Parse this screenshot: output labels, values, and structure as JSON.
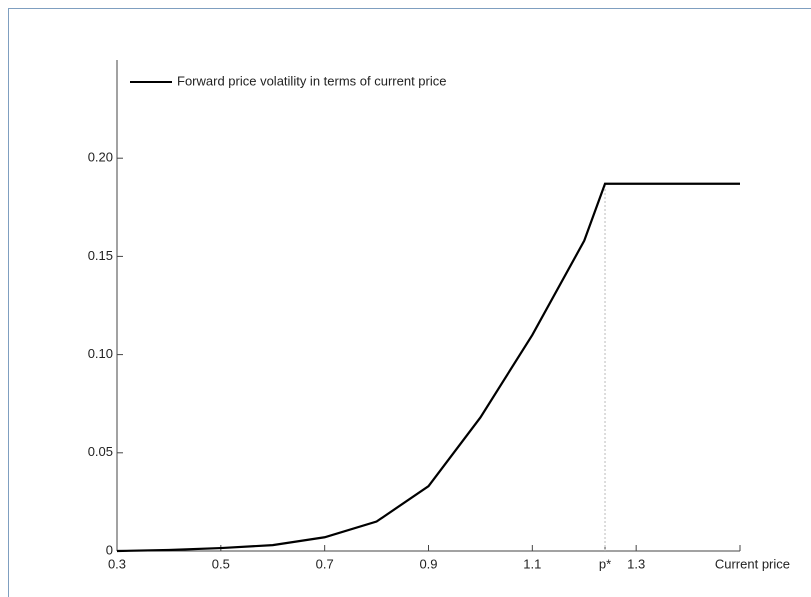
{
  "chart_data": {
    "type": "line",
    "x_label": "Current price",
    "x": [
      0.3,
      0.4,
      0.5,
      0.6,
      0.7,
      0.8,
      0.9,
      1.0,
      1.1,
      1.2,
      1.24,
      1.5
    ],
    "series": [
      {
        "name": "Forward price volatility in terms of current price",
        "color": "#000000",
        "values": [
          0,
          0.0005,
          0.0015,
          0.003,
          0.007,
          0.015,
          0.033,
          0.068,
          0.11,
          0.158,
          0.187,
          0.187
        ]
      }
    ],
    "xlim": [
      0.3,
      1.5
    ],
    "ylim": [
      0,
      0.25
    ],
    "xticks": [
      0.3,
      0.5,
      0.7,
      0.9,
      1.1,
      {
        "value": 1.24,
        "label": "p*"
      },
      1.3
    ],
    "yticks": [
      0,
      0.05,
      {
        "value": 0.1,
        "label": "0.10"
      },
      0.15,
      {
        "value": 0.2,
        "label": "0.20"
      }
    ],
    "legend": "upper left"
  }
}
